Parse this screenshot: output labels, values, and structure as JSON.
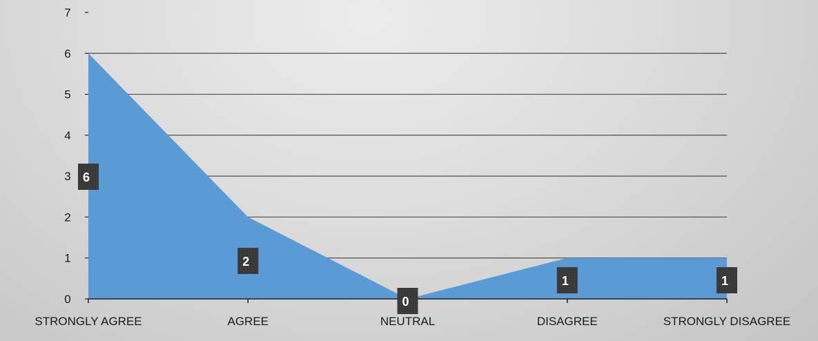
{
  "chart_data": {
    "type": "area",
    "categories": [
      "STRONGLY AGREE",
      "AGREE",
      "NEUTRAL",
      "DISAGREE",
      "STRONGLY DISAGREE"
    ],
    "values": [
      6,
      2,
      0,
      1,
      1
    ],
    "data_labels": [
      "6",
      "2",
      "0",
      "1",
      "1"
    ],
    "y_ticks": [
      "0",
      "1",
      "2",
      "3",
      "4",
      "5",
      "6",
      "7"
    ],
    "ylim": [
      0,
      7
    ],
    "grid": true,
    "legend": "none",
    "colors": {
      "area_fill": "#5b9bd5",
      "gridline": "#1f1f1f",
      "axis": "#1f1f1f",
      "label_box": "#3a3a3a"
    }
  }
}
